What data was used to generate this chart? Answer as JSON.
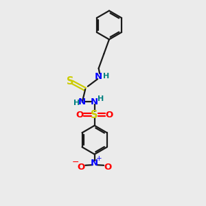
{
  "bg_color": "#ebebeb",
  "bond_color": "#1a1a1a",
  "N_color": "#0000ff",
  "O_color": "#ff0000",
  "S_color": "#cccc00",
  "H_color": "#008080",
  "fig_width": 3.0,
  "fig_height": 3.0,
  "dpi": 100,
  "xlim": [
    0,
    10
  ],
  "ylim": [
    0,
    10
  ]
}
